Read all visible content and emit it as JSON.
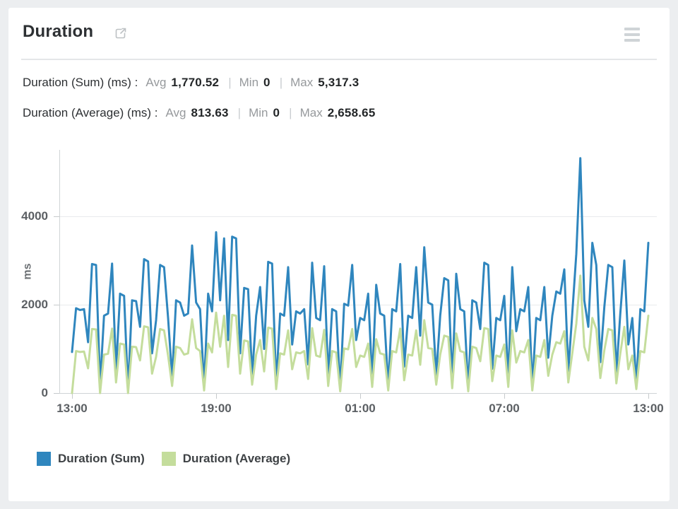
{
  "header": {
    "title": "Duration"
  },
  "stats": {
    "pipe": "|",
    "rows": [
      {
        "label": "Duration (Sum) (ms) :",
        "avg_label": "Avg",
        "avg": "1,770.52",
        "min_label": "Min",
        "min": "0",
        "max_label": "Max",
        "max": "5,317.3"
      },
      {
        "label": "Duration (Average) (ms) :",
        "avg_label": "Avg",
        "avg": "813.63",
        "min_label": "Min",
        "min": "0",
        "max_label": "Max",
        "max": "2,658.65"
      }
    ]
  },
  "chart_data": {
    "type": "line",
    "title": "Duration",
    "xlabel": "",
    "ylabel": "ms",
    "x_tick_labels": [
      "13:00",
      "19:00",
      "01:00",
      "07:00",
      "13:00"
    ],
    "y_ticks": [
      0,
      2000,
      4000
    ],
    "ylim": [
      0,
      5504
    ],
    "x_span_hours": 24,
    "grid": "horizontal",
    "legend_position": "bottom-left",
    "series": [
      {
        "name": "Duration (Sum)",
        "color": "#2f86be",
        "stats": {
          "avg": 1770.52,
          "min": 0,
          "max": 5317.3
        },
        "values": [
          930,
          1920,
          1880,
          1900,
          1150,
          2920,
          2900,
          180,
          1750,
          1800,
          2930,
          500,
          2250,
          2200,
          60,
          2100,
          2080,
          1500,
          3030,
          2980,
          900,
          1650,
          2900,
          2850,
          1700,
          350,
          2100,
          2050,
          1750,
          1800,
          3340,
          2050,
          1900,
          150,
          2250,
          1850,
          3640,
          2100,
          3500,
          1200,
          3540,
          3500,
          900,
          2380,
          2350,
          400,
          1750,
          2400,
          1000,
          2970,
          2930,
          200,
          1800,
          1750,
          2850,
          1100,
          1850,
          1800,
          1900,
          650,
          2950,
          1700,
          1650,
          2870,
          350,
          1900,
          1850,
          100,
          2020,
          1980,
          2900,
          1200,
          1700,
          1650,
          2250,
          300,
          2450,
          1800,
          1750,
          150,
          1900,
          1850,
          2920,
          600,
          1750,
          1700,
          2850,
          1300,
          3300,
          2050,
          2000,
          400,
          1750,
          2600,
          2550,
          250,
          2700,
          1900,
          1850,
          100,
          2100,
          2050,
          1450,
          2950,
          2900,
          550,
          1700,
          1650,
          2200,
          300,
          2850,
          1400,
          1900,
          1850,
          2400,
          150,
          1700,
          1650,
          2400,
          800,
          1750,
          2300,
          2250,
          2800,
          500,
          1800,
          3150,
          5317,
          2100,
          1500,
          3400,
          2900,
          700,
          1950,
          2900,
          2850,
          450,
          1800,
          3000,
          1100,
          1700,
          200,
          1900,
          1850,
          3400
        ]
      },
      {
        "name": "Duration (Average)",
        "color": "#c4dd9c",
        "stats": {
          "avg": 813.63,
          "min": 0,
          "max": 2658.65
        },
        "values": [
          0,
          950,
          930,
          940,
          560,
          1450,
          1440,
          0,
          870,
          890,
          1460,
          240,
          1120,
          1100,
          0,
          1050,
          1040,
          740,
          1510,
          1490,
          440,
          820,
          1450,
          1420,
          850,
          160,
          1050,
          1020,
          870,
          900,
          1670,
          1020,
          950,
          60,
          1120,
          920,
          1820,
          1050,
          1750,
          590,
          1770,
          1750,
          440,
          1190,
          1170,
          190,
          870,
          1200,
          490,
          1480,
          1460,
          90,
          900,
          870,
          1420,
          540,
          920,
          900,
          950,
          320,
          1470,
          850,
          820,
          1430,
          160,
          950,
          920,
          40,
          1010,
          990,
          1450,
          590,
          850,
          820,
          1120,
          140,
          1220,
          900,
          870,
          60,
          950,
          920,
          1460,
          290,
          870,
          850,
          1420,
          640,
          1650,
          1020,
          1000,
          190,
          870,
          1300,
          1270,
          110,
          1350,
          950,
          920,
          40,
          1050,
          1020,
          720,
          1470,
          1450,
          270,
          850,
          820,
          1100,
          140,
          1420,
          690,
          950,
          920,
          1200,
          60,
          850,
          820,
          1200,
          390,
          870,
          1150,
          1120,
          1400,
          240,
          900,
          1570,
          2658,
          1050,
          740,
          1700,
          1450,
          340,
          970,
          1450,
          1420,
          220,
          900,
          1500,
          540,
          850,
          90,
          950,
          920,
          1750
        ]
      }
    ]
  }
}
